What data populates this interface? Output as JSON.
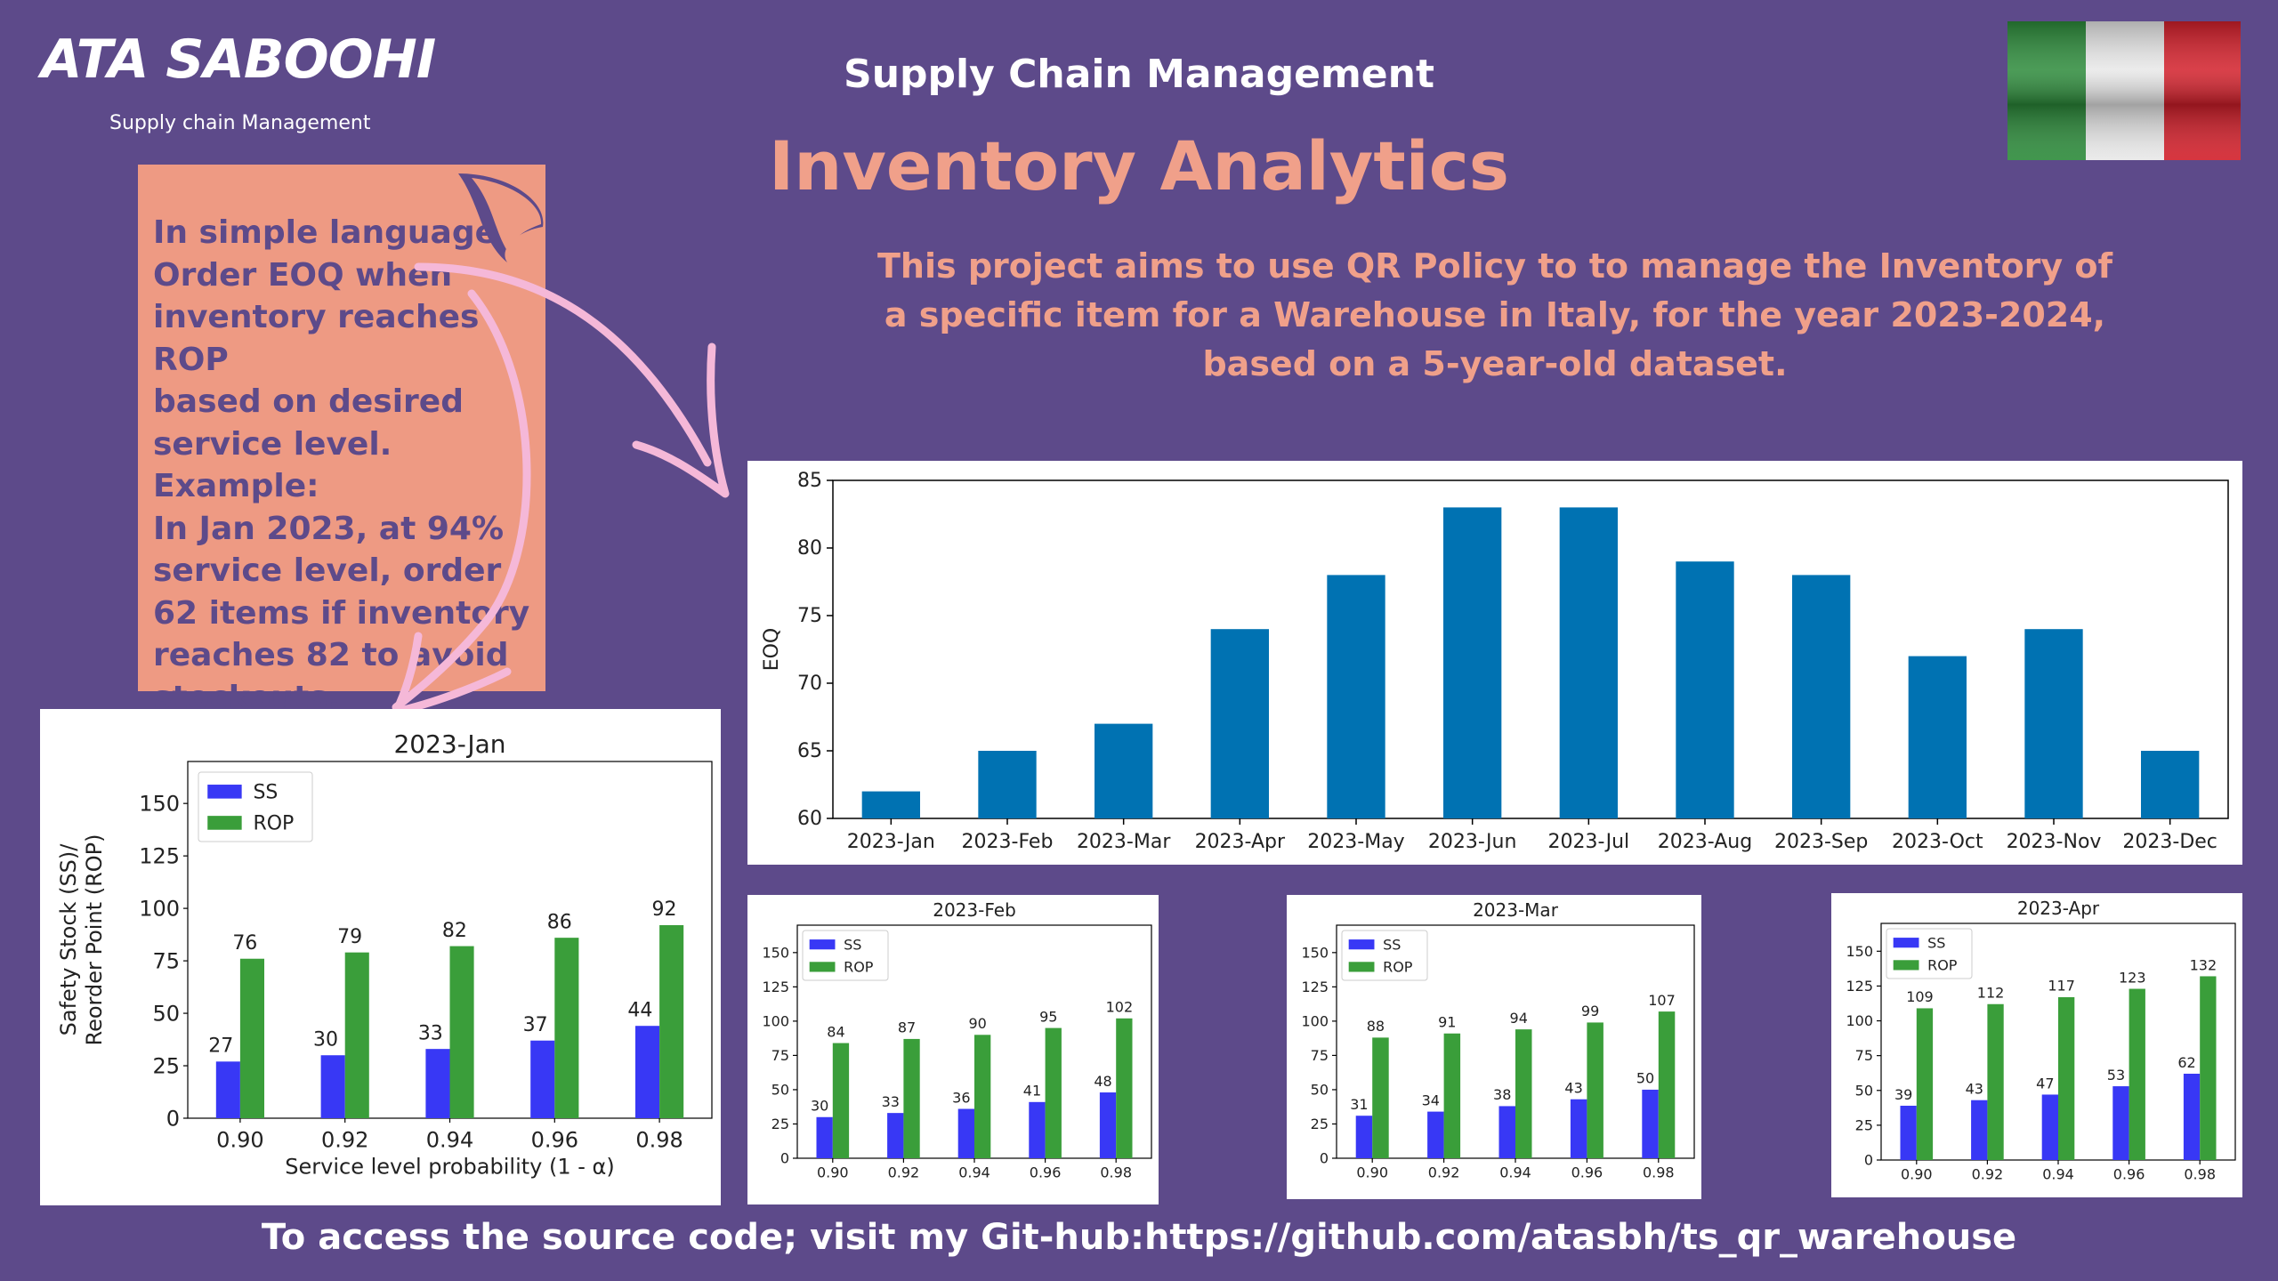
{
  "logo": {
    "brand": "ATA SABOOHI",
    "tagline": "Supply chain Management"
  },
  "header": {
    "subtitle": "Supply Chain Management",
    "title": "Inventory Analytics",
    "description": [
      "This project aims to use QR Policy to to manage the Inventory of",
      "a specific item for a Warehouse in Italy, for the year 2023-2024,",
      "based on a 5-year-old dataset."
    ]
  },
  "note": {
    "lines": [
      "In simple language",
      "Order EOQ when",
      "inventory reaches ROP",
      "based on desired",
      "service level. Example:",
      "In Jan 2023, at 94%",
      "service level, order",
      "62 items if inventory",
      "reaches 82 to avoid",
      "stockouts."
    ]
  },
  "footer": {
    "text": "To access the source code; visit my Git-hub:https://github.com/atasbh/ts_qr_warehouse"
  },
  "colors": {
    "background": "#5d4a8a",
    "accent": "#f0a08a",
    "note_bg": "#ee9a83",
    "eoq_bar": "#0072b2",
    "ss": "#3838f5",
    "rop": "#3a9e3a"
  },
  "chart_data": [
    {
      "id": "eoq",
      "type": "bar",
      "title": "",
      "xlabel": "",
      "ylabel": "EOQ",
      "categories": [
        "2023-Jan",
        "2023-Feb",
        "2023-Mar",
        "2023-Apr",
        "2023-May",
        "2023-Jun",
        "2023-Jul",
        "2023-Aug",
        "2023-Sep",
        "2023-Oct",
        "2023-Nov",
        "2023-Dec"
      ],
      "values": [
        62,
        65,
        67,
        74,
        78,
        83,
        83,
        79,
        78,
        72,
        74,
        65
      ],
      "ylim": [
        60,
        85
      ],
      "yticks": [
        60,
        65,
        70,
        75,
        80,
        85
      ],
      "grid": false
    },
    {
      "id": "jan",
      "type": "bar",
      "title": "2023-Jan",
      "xlabel": "Service level probability (1 - α)",
      "ylabel": "Safety Stock (SS)/ Reorder Point (ROP)",
      "categories": [
        "0.90",
        "0.92",
        "0.94",
        "0.96",
        "0.98"
      ],
      "legend": "top-left",
      "ylim": [
        0,
        170
      ],
      "yticks": [
        0,
        25,
        50,
        75,
        100,
        125,
        150
      ],
      "series": [
        {
          "name": "SS",
          "values": [
            27,
            30,
            33,
            37,
            44
          ]
        },
        {
          "name": "ROP",
          "values": [
            76,
            79,
            82,
            86,
            92
          ]
        }
      ]
    },
    {
      "id": "feb",
      "type": "bar",
      "title": "2023-Feb",
      "xlabel": "",
      "ylabel": "",
      "categories": [
        "0.90",
        "0.92",
        "0.94",
        "0.96",
        "0.98"
      ],
      "legend": "top-left",
      "ylim": [
        0,
        170
      ],
      "yticks": [
        0,
        25,
        50,
        75,
        100,
        125,
        150
      ],
      "series": [
        {
          "name": "SS",
          "values": [
            30,
            33,
            36,
            41,
            48
          ]
        },
        {
          "name": "ROP",
          "values": [
            84,
            87,
            90,
            95,
            102
          ]
        }
      ]
    },
    {
      "id": "mar",
      "type": "bar",
      "title": "2023-Mar",
      "xlabel": "",
      "ylabel": "",
      "categories": [
        "0.90",
        "0.92",
        "0.94",
        "0.96",
        "0.98"
      ],
      "legend": "top-left",
      "ylim": [
        0,
        170
      ],
      "yticks": [
        0,
        25,
        50,
        75,
        100,
        125,
        150
      ],
      "series": [
        {
          "name": "SS",
          "values": [
            31,
            34,
            38,
            43,
            50
          ]
        },
        {
          "name": "ROP",
          "values": [
            88,
            91,
            94,
            99,
            107
          ]
        }
      ]
    },
    {
      "id": "apr",
      "type": "bar",
      "title": "2023-Apr",
      "xlabel": "",
      "ylabel": "",
      "categories": [
        "0.90",
        "0.92",
        "0.94",
        "0.96",
        "0.98"
      ],
      "legend": "top-left",
      "ylim": [
        0,
        170
      ],
      "yticks": [
        0,
        25,
        50,
        75,
        100,
        125,
        150
      ],
      "series": [
        {
          "name": "SS",
          "values": [
            39,
            43,
            47,
            53,
            62
          ]
        },
        {
          "name": "ROP",
          "values": [
            109,
            112,
            117,
            123,
            132
          ]
        }
      ]
    }
  ]
}
